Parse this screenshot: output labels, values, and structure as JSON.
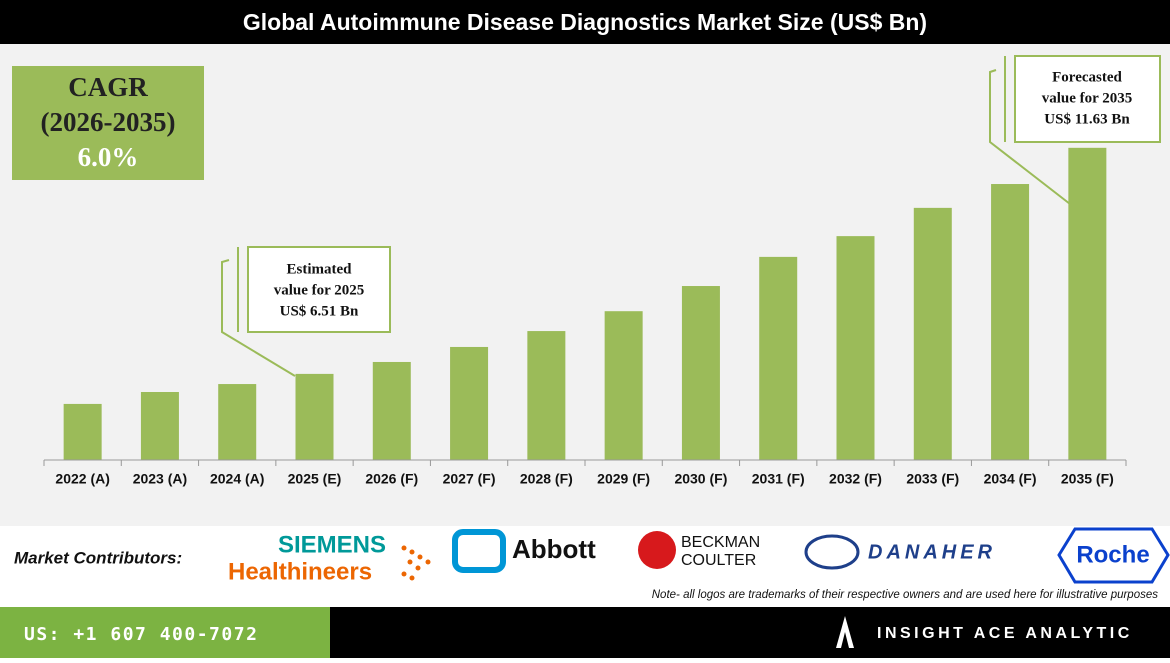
{
  "chart_data": {
    "type": "bar",
    "title": "Global Autoimmune Disease Diagnostics Market Size (US$ Bn)",
    "categories": [
      "2022 (A)",
      "2023 (A)",
      "2024 (A)",
      "2025 (E)",
      "2026 (F)",
      "2027 (F)",
      "2028 (F)",
      "2029 (F)",
      "2030 (F)",
      "2031 (F)",
      "2032 (F)",
      "2033 (F)",
      "2034 (F)",
      "2035 (F)"
    ],
    "values": [
      5.83,
      6.1,
      6.28,
      6.51,
      6.78,
      7.12,
      7.48,
      7.93,
      8.5,
      9.16,
      9.63,
      10.27,
      10.81,
      11.63
    ],
    "color": "#9bbb59",
    "ylim": [
      4.56,
      12.5
    ],
    "annotations": [
      {
        "text": [
          "Estimated",
          "value for 2025",
          "US$ 6.51 Bn"
        ]
      },
      {
        "text": [
          "Forecasted",
          "value for 2035",
          "US$ 11.63 Bn"
        ]
      }
    ]
  },
  "cagr_box": {
    "label": "CAGR",
    "period": "(2026-2035)",
    "value": "6.0%"
  },
  "contributors": {
    "label": "Market Contributors:",
    "logos": [
      [
        "SIEMENS",
        "Healthineers"
      ],
      [
        "Abbott"
      ],
      [
        "BECKMAN",
        "COULTER"
      ],
      [
        "DANAHER"
      ],
      [
        "Roche"
      ]
    ]
  },
  "note": "Note- all logos are trademarks of their respective owners and are used here for illustrative purposes",
  "footer": {
    "phone": "US: +1 607 400-7072",
    "brand": "INSIGHT ACE ANALYTIC"
  }
}
